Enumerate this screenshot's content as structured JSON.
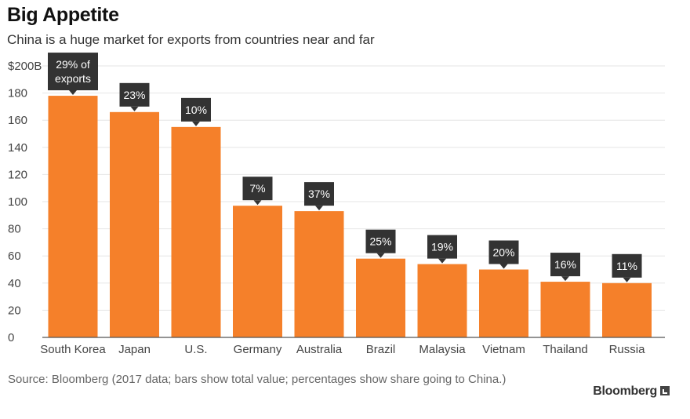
{
  "chart_data": {
    "type": "bar",
    "title": "Big Appetite",
    "subtitle": "China is a huge market for exports from countries near and far",
    "categories": [
      "South Korea",
      "Japan",
      "U.S.",
      "Germany",
      "Australia",
      "Brazil",
      "Malaysia",
      "Vietnam",
      "Thailand",
      "Russia"
    ],
    "values": [
      178,
      166,
      155,
      97,
      93,
      58,
      54,
      50,
      41,
      40
    ],
    "annotations": [
      [
        "29% of",
        "exports"
      ],
      [
        "23%"
      ],
      [
        "10%"
      ],
      [
        "7%"
      ],
      [
        "37%"
      ],
      [
        "25%"
      ],
      [
        "19%"
      ],
      [
        "20%"
      ],
      [
        "16%"
      ],
      [
        "11%"
      ]
    ],
    "yticks": [
      0,
      20,
      40,
      60,
      80,
      100,
      120,
      140,
      160,
      180,
      200
    ],
    "ytick_labels": [
      "0",
      "20",
      "40",
      "60",
      "80",
      "100",
      "120",
      "140",
      "160",
      "180",
      "$200B"
    ],
    "ylim": [
      0,
      200
    ],
    "xlabel": "",
    "ylabel": "",
    "grid": true,
    "colors": {
      "bar": "#f5802a",
      "annotation": "#333333",
      "grid": "#e6e6e6",
      "axis": "#555555"
    }
  },
  "source": "Source: Bloomberg (2017 data; bars show total value; percentages show share going to China.)",
  "brand": "Bloomberg"
}
